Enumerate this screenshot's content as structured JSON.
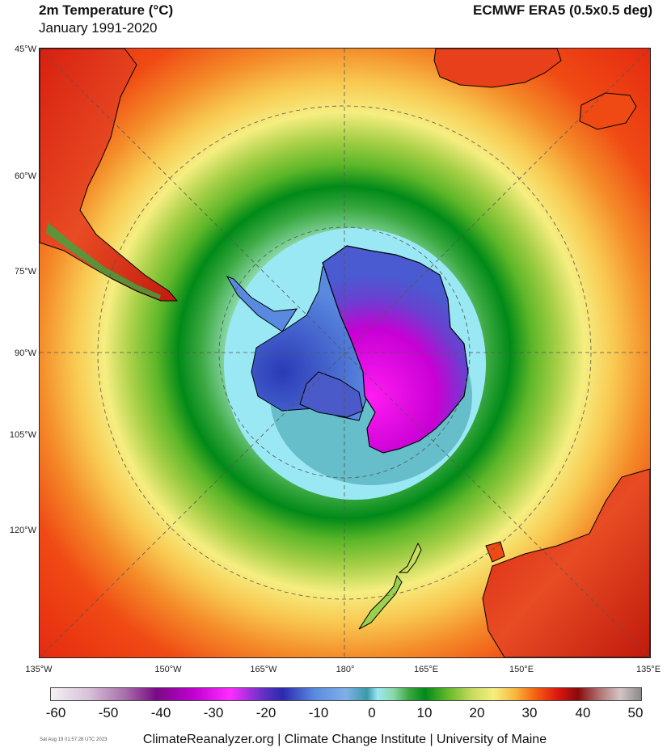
{
  "header": {
    "title": "2m Temperature (°C)",
    "subtitle": "January 1991-2020",
    "source": "ECMWF ERA5 (0.5x0.5 deg)"
  },
  "map": {
    "projection": "south polar stereographic",
    "graticule_style": "dashed",
    "left_ticks": [
      "45°W",
      "60°W",
      "75°W",
      "90°W",
      "105°W",
      "120°W"
    ],
    "bottom_ticks": [
      "135°W",
      "150°W",
      "165°W",
      "180°",
      "165°E",
      "150°E",
      "135°E"
    ],
    "colors": {
      "land_outline": "#000000",
      "graticule": "#555555"
    }
  },
  "colorbar": {
    "labels": [
      "-60",
      "-50",
      "-40",
      "-30",
      "-20",
      "-10",
      "0",
      "10",
      "20",
      "30",
      "40",
      "50"
    ],
    "min": -62,
    "max": 50,
    "stops": [
      {
        "value": -62,
        "color": "#f4f0f4"
      },
      {
        "value": -55,
        "color": "#d8c2da"
      },
      {
        "value": -48,
        "color": "#a870aa"
      },
      {
        "value": -42,
        "color": "#7a0a86"
      },
      {
        "value": -35,
        "color": "#c000d0"
      },
      {
        "value": -28,
        "color": "#ff2cff"
      },
      {
        "value": -22,
        "color": "#6a30c8"
      },
      {
        "value": -18,
        "color": "#2a2ab0"
      },
      {
        "value": -12,
        "color": "#5a8ae0"
      },
      {
        "value": -6,
        "color": "#7fb0e8"
      },
      {
        "value": -2,
        "color": "#3a9aa8"
      },
      {
        "value": 0,
        "color": "#9ae8f4"
      },
      {
        "value": 3,
        "color": "#8ad8a8"
      },
      {
        "value": 6,
        "color": "#3aa840"
      },
      {
        "value": 9,
        "color": "#008a18"
      },
      {
        "value": 13,
        "color": "#5cb628"
      },
      {
        "value": 18,
        "color": "#c8dc60"
      },
      {
        "value": 22,
        "color": "#f6ee80"
      },
      {
        "value": 26,
        "color": "#f8b840"
      },
      {
        "value": 30,
        "color": "#f46010"
      },
      {
        "value": 34,
        "color": "#e01810"
      },
      {
        "value": 38,
        "color": "#8a0a0a"
      },
      {
        "value": 42,
        "color": "#b07070"
      },
      {
        "value": 46,
        "color": "#d4c4c4"
      },
      {
        "value": 50,
        "color": "#8a8a8a"
      }
    ]
  },
  "footer": {
    "timestamp": "Sat Aug 19 01:57:28 UTC 2023",
    "credit": "ClimateReanalyzer.org | Climate Change Institute | University of Maine"
  }
}
